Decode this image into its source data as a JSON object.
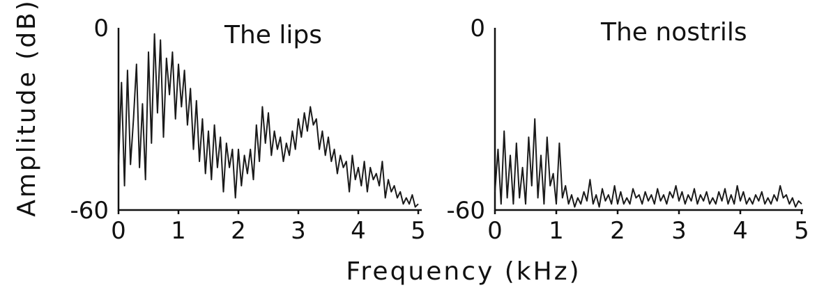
{
  "shared": {
    "xlabel": "Frequency (kHz)",
    "ylabel": "Amplitude (dB)"
  },
  "chart_data": [
    {
      "type": "line",
      "title": "The lips",
      "xlim": [
        0,
        5
      ],
      "ylim": [
        -60,
        0
      ],
      "x_ticks": [
        "0",
        "1",
        "2",
        "3",
        "4",
        "5"
      ],
      "y_ticks": [
        "0",
        "-60"
      ],
      "grid": false,
      "series": [
        {
          "x": [
            0.0,
            0.05,
            0.1,
            0.15,
            0.2,
            0.25,
            0.3,
            0.35,
            0.4,
            0.45,
            0.5,
            0.55,
            0.6,
            0.65,
            0.7,
            0.75,
            0.8,
            0.85,
            0.9,
            0.95,
            1.0,
            1.05,
            1.1,
            1.15,
            1.2,
            1.25,
            1.3,
            1.35,
            1.4,
            1.45,
            1.5,
            1.55,
            1.6,
            1.65,
            1.7,
            1.75,
            1.8,
            1.85,
            1.9,
            1.95,
            2.0,
            2.05,
            2.1,
            2.15,
            2.2,
            2.25,
            2.3,
            2.35,
            2.4,
            2.45,
            2.5,
            2.55,
            2.6,
            2.65,
            2.7,
            2.75,
            2.8,
            2.85,
            2.9,
            2.95,
            3.0,
            3.05,
            3.1,
            3.15,
            3.2,
            3.25,
            3.3,
            3.35,
            3.4,
            3.45,
            3.5,
            3.55,
            3.6,
            3.65,
            3.7,
            3.75,
            3.8,
            3.85,
            3.9,
            3.95,
            4.0,
            4.05,
            4.1,
            4.15,
            4.2,
            4.25,
            4.3,
            4.35,
            4.4,
            4.45,
            4.5,
            4.55,
            4.6,
            4.65,
            4.7,
            4.75,
            4.8,
            4.85,
            4.9,
            4.95,
            5.0
          ],
          "y": [
            -45,
            -18,
            -52,
            -14,
            -45,
            -30,
            -12,
            -46,
            -25,
            -50,
            -8,
            -38,
            -2,
            -28,
            -4,
            -36,
            -10,
            -22,
            -8,
            -30,
            -12,
            -26,
            -14,
            -32,
            -20,
            -40,
            -24,
            -44,
            -30,
            -48,
            -34,
            -50,
            -32,
            -46,
            -36,
            -54,
            -38,
            -46,
            -40,
            -56,
            -40,
            -52,
            -42,
            -48,
            -40,
            -50,
            -32,
            -44,
            -26,
            -38,
            -28,
            -42,
            -34,
            -40,
            -36,
            -44,
            -38,
            -42,
            -34,
            -40,
            -30,
            -36,
            -28,
            -34,
            -26,
            -32,
            -30,
            -40,
            -34,
            -42,
            -36,
            -44,
            -40,
            -48,
            -42,
            -46,
            -44,
            -54,
            -42,
            -50,
            -46,
            -52,
            -44,
            -54,
            -46,
            -50,
            -48,
            -52,
            -44,
            -56,
            -50,
            -54,
            -52,
            -56,
            -54,
            -58,
            -56,
            -58,
            -55,
            -59,
            -58
          ]
        }
      ]
    },
    {
      "type": "line",
      "title": "The nostrils",
      "xlim": [
        0,
        5
      ],
      "ylim": [
        -60,
        0
      ],
      "x_ticks": [
        "0",
        "1",
        "2",
        "3",
        "4",
        "5"
      ],
      "y_ticks": [
        "0",
        "-60"
      ],
      "grid": false,
      "series": [
        {
          "x": [
            0.0,
            0.05,
            0.1,
            0.15,
            0.2,
            0.25,
            0.3,
            0.35,
            0.4,
            0.45,
            0.5,
            0.55,
            0.6,
            0.65,
            0.7,
            0.75,
            0.8,
            0.85,
            0.9,
            0.95,
            1.0,
            1.05,
            1.1,
            1.15,
            1.2,
            1.25,
            1.3,
            1.35,
            1.4,
            1.45,
            1.5,
            1.55,
            1.6,
            1.65,
            1.7,
            1.75,
            1.8,
            1.85,
            1.9,
            1.95,
            2.0,
            2.05,
            2.1,
            2.15,
            2.2,
            2.25,
            2.3,
            2.35,
            2.4,
            2.45,
            2.5,
            2.55,
            2.6,
            2.65,
            2.7,
            2.75,
            2.8,
            2.85,
            2.9,
            2.95,
            3.0,
            3.05,
            3.1,
            3.15,
            3.2,
            3.25,
            3.3,
            3.35,
            3.4,
            3.45,
            3.5,
            3.55,
            3.6,
            3.65,
            3.7,
            3.75,
            3.8,
            3.85,
            3.9,
            3.95,
            4.0,
            4.05,
            4.1,
            4.15,
            4.2,
            4.25,
            4.3,
            4.35,
            4.4,
            4.45,
            4.5,
            4.55,
            4.6,
            4.65,
            4.7,
            4.75,
            4.8,
            4.85,
            4.9,
            4.95,
            5.0
          ],
          "y": [
            -54,
            -40,
            -58,
            -34,
            -56,
            -42,
            -58,
            -38,
            -56,
            -46,
            -58,
            -36,
            -52,
            -30,
            -56,
            -42,
            -58,
            -36,
            -52,
            -48,
            -58,
            -38,
            -56,
            -52,
            -58,
            -55,
            -59,
            -56,
            -58,
            -54,
            -57,
            -50,
            -58,
            -55,
            -59,
            -53,
            -57,
            -55,
            -58,
            -52,
            -58,
            -54,
            -58,
            -56,
            -58,
            -53,
            -56,
            -55,
            -58,
            -54,
            -57,
            -55,
            -58,
            -53,
            -57,
            -55,
            -58,
            -54,
            -56,
            -52,
            -57,
            -54,
            -58,
            -55,
            -57,
            -53,
            -58,
            -55,
            -57,
            -54,
            -58,
            -56,
            -58,
            -54,
            -57,
            -53,
            -58,
            -55,
            -58,
            -52,
            -57,
            -54,
            -58,
            -56,
            -58,
            -55,
            -57,
            -54,
            -58,
            -56,
            -58,
            -55,
            -57,
            -52,
            -56,
            -55,
            -58,
            -56,
            -59,
            -57,
            -58
          ]
        }
      ]
    }
  ]
}
